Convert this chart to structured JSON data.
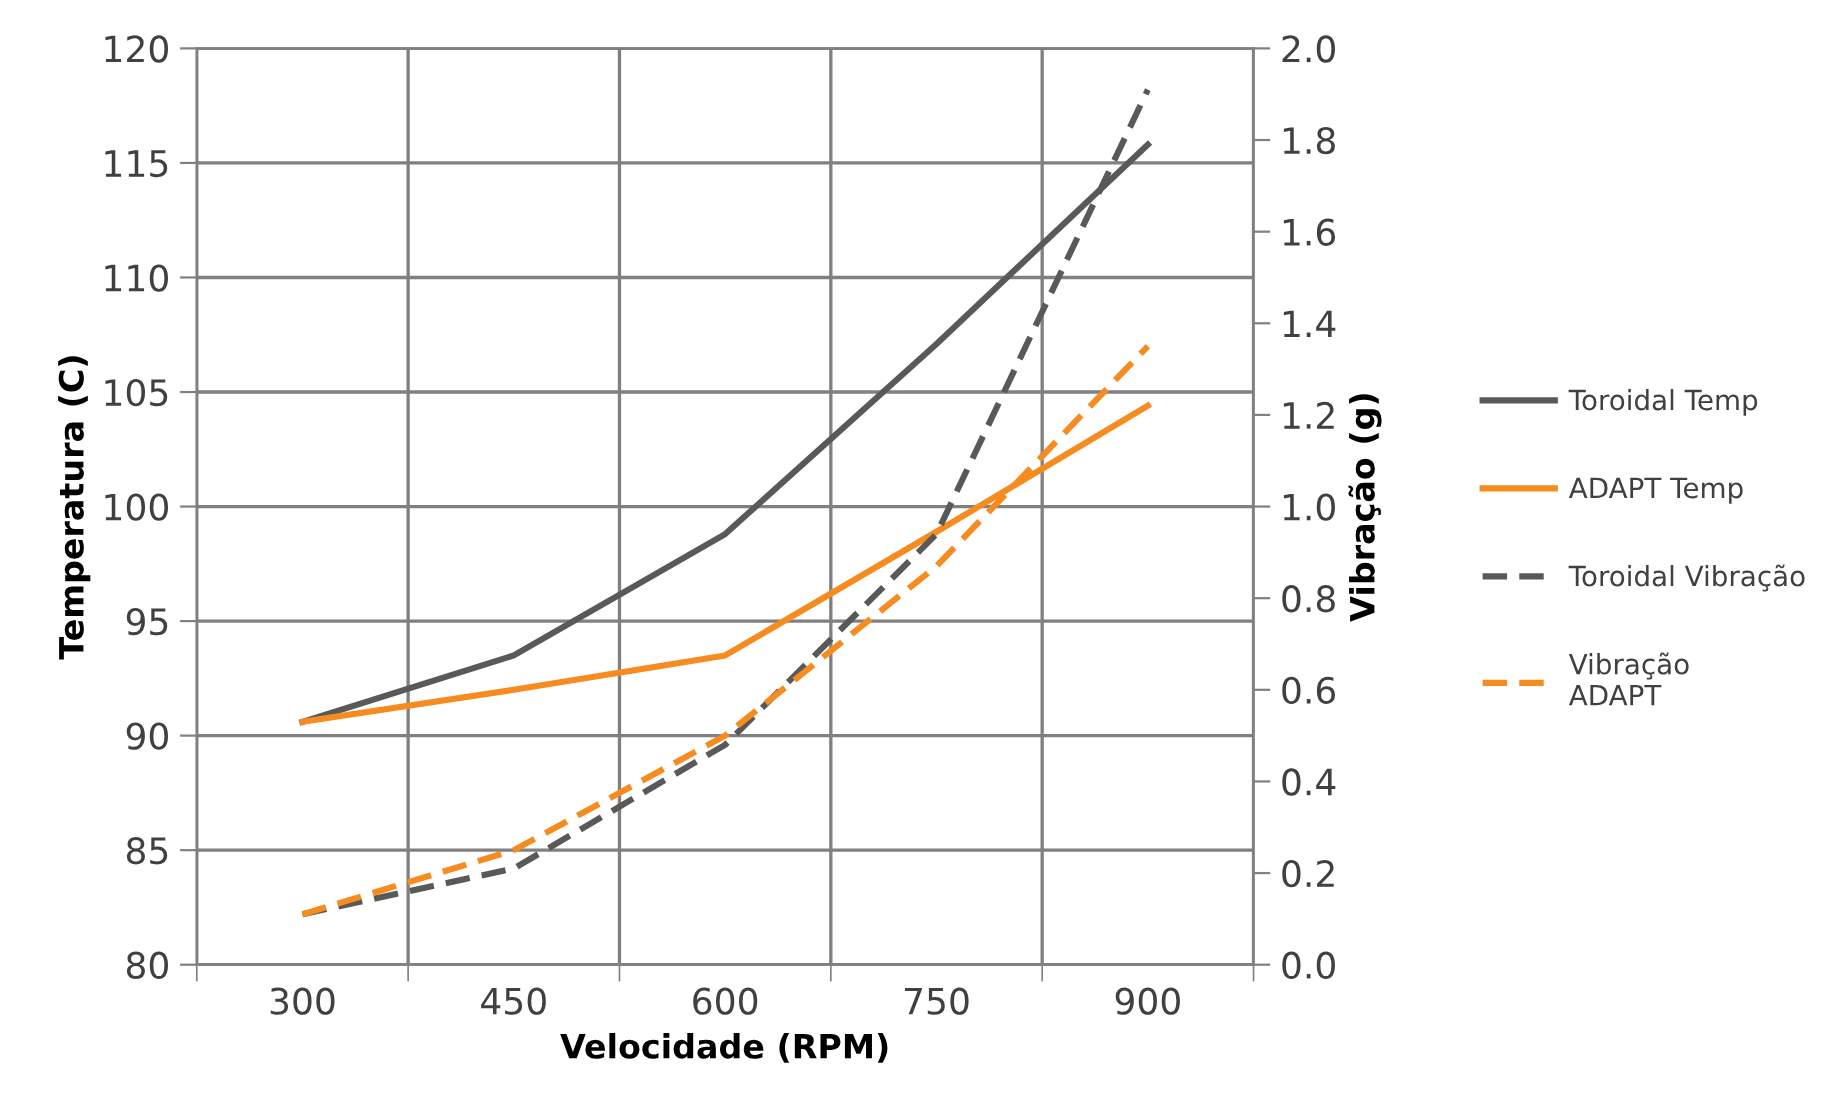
{
  "chart_data": {
    "type": "line",
    "xlabel": "Velocidade (RPM)",
    "ylabel": "Temperatura (C)",
    "y2label": "Vibração (g)",
    "categories": [
      "300",
      "450",
      "600",
      "750",
      "900"
    ],
    "series": [
      {
        "name": "Toroidal Temp",
        "color": "#595959",
        "values": [
          90.6,
          93.5,
          98.8,
          107.1,
          115.8
        ]
      },
      {
        "name": "ADAPT Temp",
        "color": "#f68b1f",
        "values": [
          90.6,
          92.0,
          93.5,
          98.9,
          104.4
        ]
      },
      {
        "name": "Toroidal Vibração",
        "color": "#595959",
        "axis": "y2",
        "line_style": "dashed",
        "values": [
          0.11,
          0.21,
          0.48,
          0.94,
          1.91
        ]
      },
      {
        "name": "Vibração\nADAPT",
        "color": "#f68b1f",
        "axis": "y2",
        "line_style": "dashed",
        "values": [
          0.11,
          0.25,
          0.5,
          0.87,
          1.35
        ]
      }
    ],
    "ylim": [
      80,
      120
    ],
    "yticks": [
      80,
      85,
      90,
      95,
      100,
      105,
      110,
      115,
      120
    ],
    "y2lim": [
      0,
      2
    ],
    "y2ticks": [
      {
        "value": 0,
        "label": "0.0"
      },
      {
        "value": 0.2,
        "label": "0.2"
      },
      {
        "value": 0.4,
        "label": "0.4"
      },
      {
        "value": 0.6,
        "label": "0.6"
      },
      {
        "value": 0.8,
        "label": "0.8"
      },
      {
        "value": 1,
        "label": "1.0"
      },
      {
        "value": 1.2,
        "label": "1.2"
      },
      {
        "value": 1.4,
        "label": "1.4"
      },
      {
        "value": 1.6,
        "label": "1.6"
      },
      {
        "value": 1.8,
        "label": "1.8"
      },
      {
        "value": 2,
        "label": "2.0"
      }
    ],
    "grid": true,
    "legend": "right",
    "line_style": "solid",
    "marker": "none"
  }
}
